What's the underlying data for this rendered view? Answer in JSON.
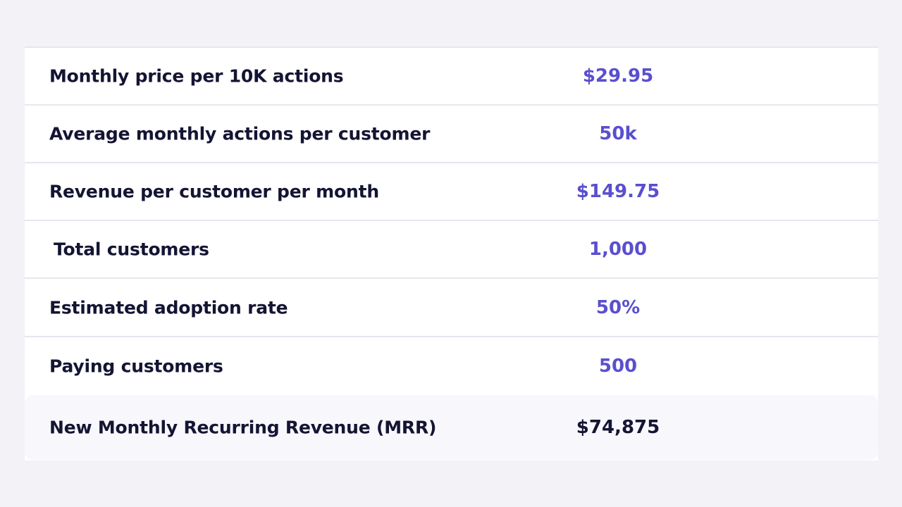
{
  "table": {
    "rows": [
      {
        "label": "Monthly price per 10K actions",
        "value": "$29.95"
      },
      {
        "label": "Average monthly actions per customer",
        "value": "50k"
      },
      {
        "label": "Revenue per customer per month",
        "value": "$149.75"
      },
      {
        "label": "Total customers",
        "value": "1,000"
      },
      {
        "label": "Estimated adoption rate",
        "value": "50%"
      },
      {
        "label": "Paying customers",
        "value": "500"
      }
    ],
    "total": {
      "label": "New Monthly Recurring Revenue (MRR)",
      "value": "$74,875"
    }
  },
  "colors": {
    "background": "#f2f2f7",
    "card": "#ffffff",
    "divider": "#e6e6ee",
    "label_text": "#141433",
    "value_accent": "#5a4fcf",
    "total_row_bg": "#f7f7fc"
  }
}
